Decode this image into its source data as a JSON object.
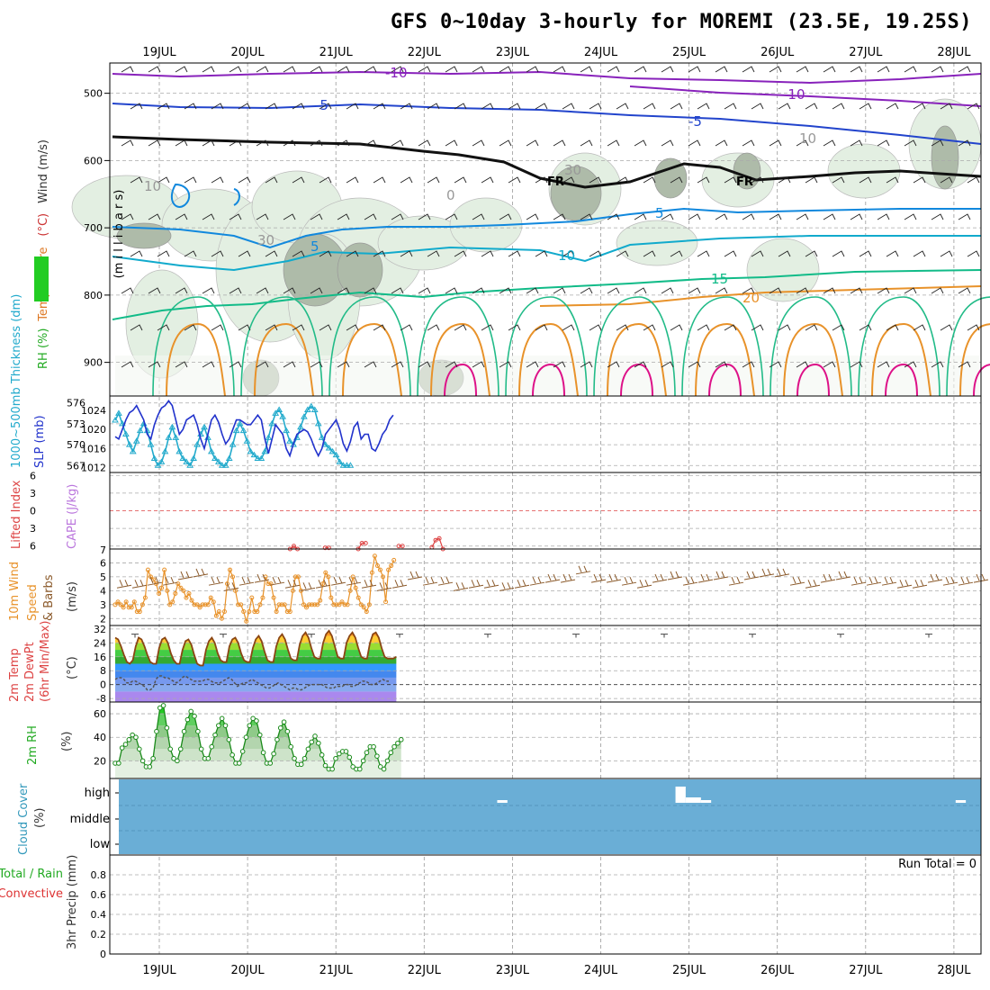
{
  "title": "GFS 0~10day 3-hourly for MOREMI (23.5E, 19.25S)",
  "chart_data": {
    "type": "meteogram",
    "dates": [
      "19JUL",
      "20JUL",
      "21JUL",
      "22JUL",
      "23JUL",
      "24JUL",
      "25JUL",
      "26JUL",
      "27JUL",
      "28JUL"
    ],
    "panels": [
      {
        "id": "upper_air",
        "type": "contour",
        "ylabel_parts": [
          {
            "text": "RH (%)",
            "color": "#22aa22"
          },
          {
            "text": "Temperature",
            "color": "#dd7722"
          },
          {
            "text": "(°C)",
            "color": "#cc3333"
          },
          {
            "text": "Wind (m/s)",
            "color": "#333333"
          }
        ],
        "ylabel2": "(m i l l i b a r s)",
        "yticks": [
          500,
          600,
          700,
          800,
          900
        ],
        "ylim": [
          455,
          950
        ],
        "isotherm_labels": [
          "-10",
          "-10",
          "-5",
          "-5",
          "5",
          "5",
          "10",
          "15",
          "20",
          "0",
          "0",
          "10",
          "10",
          "30",
          "30"
        ],
        "freezing_labels": [
          "FR",
          "FR"
        ]
      },
      {
        "id": "thickness_slp",
        "type": "line",
        "ylabel": "1000~500mb Thickness (dm)",
        "ylabel_right": "SLP (mb)",
        "left_ticks": [
          576,
          573,
          570,
          567
        ],
        "right_ticks": [
          1024,
          1020,
          1016,
          1012
        ],
        "series": [
          {
            "name": "1000~500mb Thickness (dm)",
            "color": "#22aacc",
            "values": [
              573.5,
              574.5,
              573,
              571.5,
              570,
              569,
              570.5,
              572,
              573,
              572,
              570,
              568,
              567,
              567.5,
              569,
              571,
              572.5,
              571,
              569,
              568,
              567.5,
              567,
              568,
              570,
              571.5,
              572.5,
              571,
              569,
              568,
              567.5,
              567,
              567,
              568,
              570,
              572,
              573,
              572,
              570.5,
              569,
              568.5,
              568,
              568,
              569,
              571,
              573,
              574.5,
              575,
              574,
              572,
              570.5,
              570,
              571,
              572.5,
              574,
              575,
              575.5,
              575,
              573,
              571,
              570,
              569.5,
              569,
              568.5,
              567.5,
              567,
              567,
              567
            ]
          },
          {
            "name": "SLP (mb)",
            "color": "#2233cc",
            "values": [
              1018.5,
              1018,
              1020,
              1022,
              1023.5,
              1024,
              1025,
              1023.5,
              1022,
              1019,
              1018,
              1021,
              1023,
              1024.5,
              1025,
              1026,
              1025,
              1022,
              1019,
              1020,
              1022,
              1022.5,
              1023,
              1021,
              1018,
              1016,
              1019,
              1022,
              1023,
              1021.5,
              1019,
              1017,
              1018,
              1020,
              1022,
              1022,
              1021.5,
              1021,
              1021,
              1022,
              1023,
              1022,
              1018,
              1015,
              1018,
              1021,
              1020,
              1019,
              1016,
              1014.5,
              1017,
              1019,
              1019.5,
              1020,
              1019.5,
              1018,
              1016,
              1014.5,
              1016,
              1019,
              1020,
              1021,
              1022,
              1020,
              1017,
              1015.5,
              1017.5,
              1020.5,
              1021.5,
              1018,
              1019,
              1019,
              1016,
              1015.5,
              1017,
              1019,
              1020,
              1022,
              1023
            ]
          }
        ]
      },
      {
        "id": "cape_li",
        "type": "line",
        "ylabel_left": "Lifted Index",
        "ylabel_right": "CAPE (J/kg)",
        "yticks": [
          6,
          3,
          0,
          3,
          6
        ],
        "right_tick": "7",
        "series": [
          {
            "name": "Lifted Index",
            "color": "#dd4444",
            "segments": [
              {
                "x": [
                  47.5,
                  48.5,
                  49.5
                ],
                "y": [
                  -6.5,
                  -6.0,
                  -6.5
                ]
              },
              {
                "x": [
                  57,
                  58
                ],
                "y": [
                  -6.3,
                  -6.3
                ]
              },
              {
                "x": [
                  66,
                  67,
                  68
                ],
                "y": [
                  -6.5,
                  -5.5,
                  -5.5
                ]
              },
              {
                "x": [
                  77,
                  78
                ],
                "y": [
                  -6.0,
                  -6.0
                ]
              },
              {
                "x": [
                  86,
                  87,
                  88,
                  89
                ],
                "y": [
                  -6.2,
                  -5.0,
                  -4.7,
                  -6.5
                ]
              }
            ]
          }
        ]
      },
      {
        "id": "wind10m",
        "type": "line",
        "ylabel": "10m Wind Speed (m/s) & Barbs",
        "yticks": [
          2,
          3,
          4,
          5,
          6
        ],
        "series": [
          {
            "name": "10m Wind Speed",
            "color": "#e8922a",
            "values": [
              3,
              3.2,
              3,
              2.8,
              3.2,
              2.8,
              2.8,
              3.2,
              2.5,
              2.5,
              3,
              3.5,
              5.5,
              5,
              4.8,
              4.5,
              3.8,
              4.2,
              5.5,
              4,
              3,
              3.2,
              3.8,
              4.5,
              4.2,
              4,
              3.5,
              3.8,
              3.3,
              3,
              3,
              2.8,
              3,
              3,
              3,
              3.5,
              3.2,
              2.2,
              2.5,
              2,
              2.5,
              4.5,
              5.5,
              5,
              4,
              3,
              3,
              2.5,
              1.8,
              2.5,
              3.5,
              2.5,
              2.5,
              3,
              3.5,
              5,
              4.5,
              4.5,
              3.5,
              2.5,
              3,
              3,
              3,
              2.5,
              2.5,
              4,
              5,
              5,
              4,
              3,
              2.8,
              3,
              3,
              3,
              3,
              3.3,
              4.5,
              5.3,
              5,
              3.5,
              3,
              3,
              3,
              3.2,
              3,
              3,
              4,
              5,
              4.2,
              3.5,
              3,
              2.8,
              2.5,
              3,
              5.3,
              6.5,
              5.8,
              5.5,
              5,
              3.2,
              5.5,
              5.8,
              6.2
            ]
          },
          {
            "name": "Barbs",
            "color": "#8b5a2b",
            "values": [
              4.2,
              4.2,
              4.4,
              4.4,
              4.8,
              5,
              4.4,
              4,
              4.4,
              4.6,
              4.4,
              4.2,
              4,
              4.2,
              4.4,
              4.4,
              4.2,
              4,
              4.2,
              4.8,
              4.4,
              4.4,
              4,
              4.2,
              4.2,
              4,
              4.2,
              4.4,
              4.6,
              4.6,
              5.2,
              4.6,
              4.6,
              4.4,
              4.2,
              4.6,
              4.8,
              4.4,
              4.6,
              4.8,
              4.4,
              4.8,
              5,
              5,
              4.4,
              4.2,
              4.6,
              4.8,
              4.4,
              4.4,
              4.4,
              4.2,
              4.2,
              4.6,
              4.4,
              4.4,
              4.6
            ]
          }
        ]
      },
      {
        "id": "temp2m",
        "type": "area",
        "ylabel_parts": [
          {
            "text": "2m Temp",
            "color": "#dd4444"
          },
          {
            "text": "2m DewPt",
            "color": "#dd4444"
          },
          {
            "text": "(6hr Min/Max)",
            "color": "#dd4444"
          }
        ],
        "ylabel_unit": "(°C)",
        "yticks": [
          32,
          24,
          16,
          8,
          0,
          -8
        ],
        "series": [
          {
            "name": "2m Temp",
            "color": "#8b4513",
            "values": [
              27,
              26,
              22,
              17,
              13,
              12,
              14,
              22,
              27,
              26,
              22,
              17,
              13,
              12,
              12,
              21,
              26,
              27,
              24,
              18,
              14,
              12,
              12,
              20,
              25,
              26,
              23,
              17,
              12,
              11,
              11,
              20,
              25,
              27,
              24,
              18,
              14,
              13,
              13,
              22,
              26,
              27,
              24,
              18,
              14,
              13,
              13,
              21,
              26,
              28,
              25,
              19,
              14,
              13,
              13,
              22,
              27,
              29,
              26,
              20,
              15,
              14,
              14,
              23,
              28,
              30,
              27,
              21,
              16,
              15,
              15,
              24,
              29,
              31,
              28,
              22,
              16,
              15,
              15,
              24,
              28,
              30,
              27,
              21,
              16,
              15,
              15,
              24,
              29,
              30,
              27,
              21,
              16,
              15,
              15,
              15,
              16
            ]
          },
          {
            "name": "2m DewPt",
            "color": "#555555",
            "values": [
              3,
              4,
              4,
              3,
              1,
              1,
              2,
              2,
              1,
              0,
              -1,
              -3,
              -3,
              -2,
              3,
              5,
              5,
              4,
              4,
              3,
              2,
              1,
              2,
              4,
              5,
              4,
              3,
              2,
              2,
              2,
              2,
              3,
              3,
              2,
              1,
              1,
              1,
              2,
              3,
              4,
              3,
              1,
              -1,
              0,
              1,
              1,
              2,
              3,
              2,
              1,
              0,
              -1,
              -2,
              -2,
              -1,
              0,
              1,
              0,
              -1,
              -2,
              -3,
              -2,
              -2,
              -3,
              -3,
              -2,
              -1,
              0,
              0,
              0,
              0,
              0,
              -1,
              -2,
              -2,
              -2,
              -1,
              -1,
              -1,
              0,
              0,
              -1,
              -1,
              0,
              1,
              2,
              2,
              1,
              0,
              0,
              1,
              2,
              3,
              2,
              2
            ]
          }
        ]
      },
      {
        "id": "rh2m",
        "type": "area",
        "ylabel": "2m RH (%)",
        "yticks": [
          60,
          40,
          20
        ],
        "series": [
          {
            "name": "2m RH",
            "color": "#1a8a1a",
            "values": [
              18,
              18,
              31,
              34,
              38,
              42,
              40,
              30,
              20,
              15,
              15,
              22,
              45,
              65,
              67,
              48,
              30,
              22,
              20,
              30,
              45,
              55,
              62,
              58,
              45,
              30,
              22,
              22,
              32,
              42,
              50,
              56,
              50,
              38,
              25,
              18,
              18,
              28,
              40,
              50,
              56,
              54,
              42,
              27,
              18,
              18,
              26,
              38,
              48,
              53,
              45,
              32,
              22,
              17,
              17,
              22,
              30,
              36,
              41,
              35,
              25,
              16,
              13,
              13,
              22,
              26,
              28,
              28,
              23,
              15,
              13,
              13,
              20,
              27,
              32,
              32,
              24,
              15,
              13,
              20,
              27,
              32,
              35,
              38
            ]
          }
        ]
      },
      {
        "id": "cloud",
        "type": "area",
        "ylabel": "Cloud Cover (%)",
        "yticklabels": [
          "high",
          "middle",
          "low"
        ],
        "series": [
          {
            "name": "high cloud gaps",
            "color": "#ffffff",
            "segments": [
              {
                "x": [
                  37.5,
                  38.5
                ],
                "y": [
                  0.1,
                  0.1
                ]
              },
              {
                "x": [
                  55,
                  56
                ],
                "y": [
                  0.6,
                  0.6
                ]
              },
              {
                "x": [
                  56,
                  57.5
                ],
                "y": [
                  0.2,
                  0.2
                ]
              },
              {
                "x": [
                  57.5,
                  58.5
                ],
                "y": [
                  0.1,
                  0.1
                ]
              },
              {
                "x": [
                  82.5,
                  83.5
                ],
                "y": [
                  0.1,
                  0.1
                ]
              }
            ]
          }
        ]
      },
      {
        "id": "precip",
        "type": "bar",
        "ylabel_parts": [
          {
            "text": "Total / Rain",
            "color": "#22aa22"
          },
          {
            "text": "Convective",
            "color": "#dd3333"
          },
          {
            "text": "3hr Precip (mm)",
            "color": "#333333"
          }
        ],
        "yticks": [
          0.8,
          0.6,
          0.4,
          0.2,
          0
        ],
        "annotation": "Run Total = 0",
        "values": []
      }
    ]
  }
}
